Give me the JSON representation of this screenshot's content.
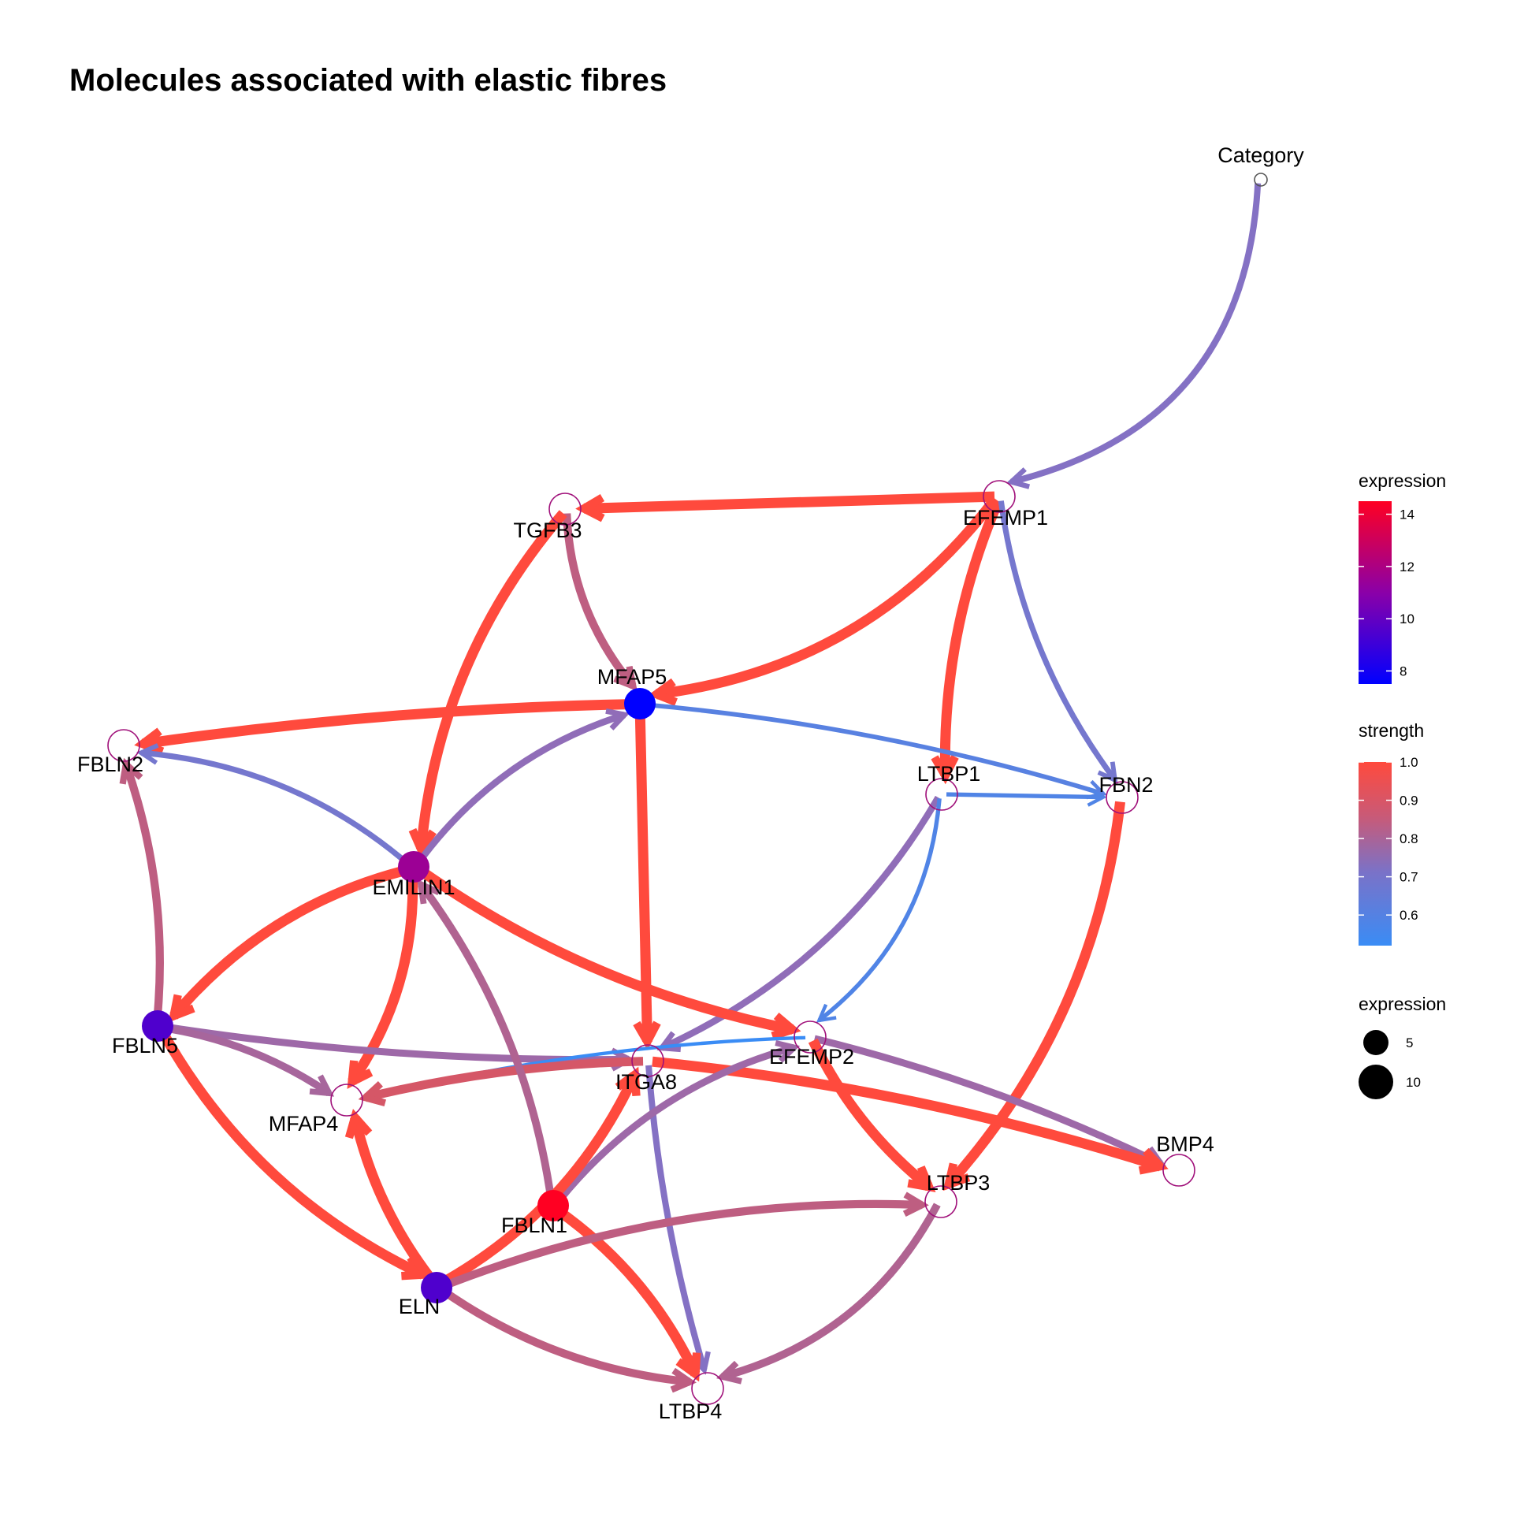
{
  "title": "Molecules associated with elastic fibres",
  "nodes": [
    {
      "id": "Category",
      "label": "Category",
      "expression": null
    },
    {
      "id": "EFEMP1",
      "label": "EFEMP1",
      "expression": null
    },
    {
      "id": "TGFB3",
      "label": "TGFB3",
      "expression": null
    },
    {
      "id": "MFAP5",
      "label": "MFAP5",
      "expression": 7.5
    },
    {
      "id": "FBLN2",
      "label": "FBLN2",
      "expression": null
    },
    {
      "id": "LTBP1",
      "label": "LTBP1",
      "expression": null
    },
    {
      "id": "FBN2",
      "label": "FBN2",
      "expression": null
    },
    {
      "id": "EMILIN1",
      "label": "EMILIN1",
      "expression": 11.5
    },
    {
      "id": "FBLN5",
      "label": "FBLN5",
      "expression": 9.5
    },
    {
      "id": "EFEMP2",
      "label": "EFEMP2",
      "expression": null
    },
    {
      "id": "ITGA8",
      "label": "ITGA8",
      "expression": null
    },
    {
      "id": "MFAP4",
      "label": "MFAP4",
      "expression": null
    },
    {
      "id": "BMP4",
      "label": "BMP4",
      "expression": null
    },
    {
      "id": "LTBP3",
      "label": "LTBP3",
      "expression": null
    },
    {
      "id": "FBLN1",
      "label": "FBLN1",
      "expression": 14.5
    },
    {
      "id": "ELN",
      "label": "ELN",
      "expression": 9.5
    },
    {
      "id": "LTBP4",
      "label": "LTBP4",
      "expression": null
    }
  ],
  "edges": [
    {
      "from": "Category",
      "to": "EFEMP1",
      "strength": 0.72
    },
    {
      "from": "EFEMP1",
      "to": "TGFB3",
      "strength": 1.0
    },
    {
      "from": "EFEMP1",
      "to": "MFAP5",
      "strength": 1.0
    },
    {
      "from": "EFEMP1",
      "to": "LTBP1",
      "strength": 1.0
    },
    {
      "from": "EFEMP1",
      "to": "FBN2",
      "strength": 0.68
    },
    {
      "from": "TGFB3",
      "to": "MFAP5",
      "strength": 0.85
    },
    {
      "from": "TGFB3",
      "to": "EMILIN1",
      "strength": 1.0
    },
    {
      "from": "MFAP5",
      "to": "FBLN2",
      "strength": 1.0
    },
    {
      "from": "MFAP5",
      "to": "FBN2",
      "strength": 0.6
    },
    {
      "from": "MFAP5",
      "to": "ITGA8",
      "strength": 1.0
    },
    {
      "from": "LTBP1",
      "to": "FBN2",
      "strength": 0.58
    },
    {
      "from": "LTBP1",
      "to": "ITGA8",
      "strength": 0.75
    },
    {
      "from": "LTBP1",
      "to": "EFEMP2",
      "strength": 0.58
    },
    {
      "from": "FBN2",
      "to": "LTBP3",
      "strength": 1.0
    },
    {
      "from": "EMILIN1",
      "to": "FBLN2",
      "strength": 0.68
    },
    {
      "from": "EMILIN1",
      "to": "MFAP5",
      "strength": 0.75
    },
    {
      "from": "EMILIN1",
      "to": "FBLN5",
      "strength": 1.0
    },
    {
      "from": "EMILIN1",
      "to": "MFAP4",
      "strength": 1.0
    },
    {
      "from": "EMILIN1",
      "to": "EFEMP2",
      "strength": 1.0
    },
    {
      "from": "FBLN5",
      "to": "FBLN2",
      "strength": 0.85
    },
    {
      "from": "FBLN5",
      "to": "ITGA8",
      "strength": 0.78
    },
    {
      "from": "FBLN5",
      "to": "MFAP4",
      "strength": 0.8
    },
    {
      "from": "FBLN5",
      "to": "ELN",
      "strength": 1.0
    },
    {
      "from": "EFEMP2",
      "to": "MFAP4",
      "strength": 0.52
    },
    {
      "from": "EFEMP2",
      "to": "BMP4",
      "strength": 0.78
    },
    {
      "from": "EFEMP2",
      "to": "LTBP3",
      "strength": 1.0
    },
    {
      "from": "ITGA8",
      "to": "BMP4",
      "strength": 1.0
    },
    {
      "from": "ITGA8",
      "to": "MFAP4",
      "strength": 0.9
    },
    {
      "from": "ITGA8",
      "to": "LTBP4",
      "strength": 0.72
    },
    {
      "from": "FBLN1",
      "to": "EMILIN1",
      "strength": 0.82
    },
    {
      "from": "FBLN1",
      "to": "EFEMP2",
      "strength": 0.78
    },
    {
      "from": "FBLN1",
      "to": "LTBP4",
      "strength": 1.0
    },
    {
      "from": "ELN",
      "to": "MFAP4",
      "strength": 1.0
    },
    {
      "from": "ELN",
      "to": "ITGA8",
      "strength": 1.0
    },
    {
      "from": "ELN",
      "to": "LTBP3",
      "strength": 0.85
    },
    {
      "from": "ELN",
      "to": "LTBP4",
      "strength": 0.85
    },
    {
      "from": "LTBP3",
      "to": "LTBP4",
      "strength": 0.82
    }
  ],
  "legend": {
    "color_title": "expression",
    "color_ticks": [
      "14",
      "12",
      "10",
      "8"
    ],
    "color_range": [
      7.5,
      14.5
    ],
    "color_low": "#0000ff",
    "color_high": "#ff0000",
    "strength_title": "strength",
    "strength_ticks": [
      "1.0",
      "0.9",
      "0.8",
      "0.7",
      "0.6"
    ],
    "strength_range": [
      0.52,
      1.0
    ],
    "strength_low": "#1e90ff",
    "strength_high": "#ff4d3d",
    "size_title": "expression",
    "size_ticks": [
      "5",
      "10"
    ]
  }
}
